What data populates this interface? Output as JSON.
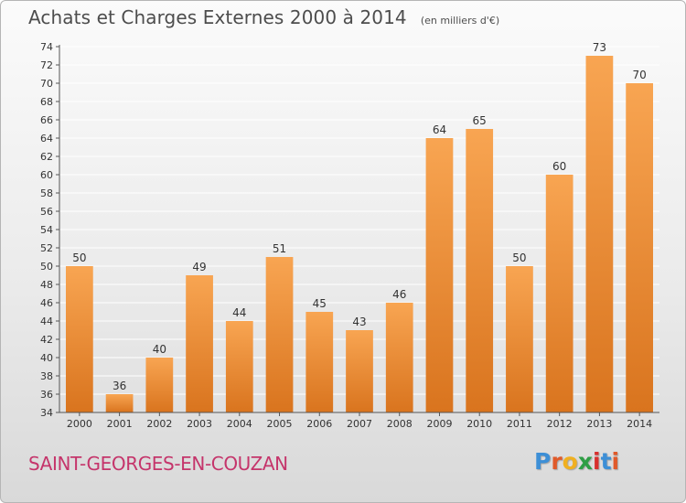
{
  "header": {
    "title": "Achats et Charges Externes 2000 à 2014",
    "subtitle": "(en milliers d'€)"
  },
  "footer": {
    "place": "SAINT-GEORGES-EN-COUZAN",
    "logo_letters": [
      "P",
      "r",
      "o",
      "x",
      "i",
      "t",
      "i"
    ],
    "logo_colors": [
      "#3d8fd6",
      "#e05a2a",
      "#f0b020",
      "#2e9e45",
      "#d8302e",
      "#3d8fd6",
      "#e05a2a"
    ]
  },
  "colors": {
    "bar_light": "#f8a552",
    "bar_dark": "#d9741e",
    "axis": "#555555",
    "grid": "#ffffff",
    "place": "#c5356b"
  },
  "chart_data": {
    "type": "bar",
    "categories": [
      "2000",
      "2001",
      "2002",
      "2003",
      "2004",
      "2005",
      "2006",
      "2007",
      "2008",
      "2009",
      "2010",
      "2011",
      "2012",
      "2013",
      "2014"
    ],
    "values": [
      50,
      36,
      40,
      49,
      44,
      51,
      45,
      43,
      46,
      64,
      65,
      50,
      60,
      73,
      70
    ],
    "ylim": [
      34,
      74
    ],
    "ytick_step": 2,
    "grid": true,
    "legend": "none"
  }
}
